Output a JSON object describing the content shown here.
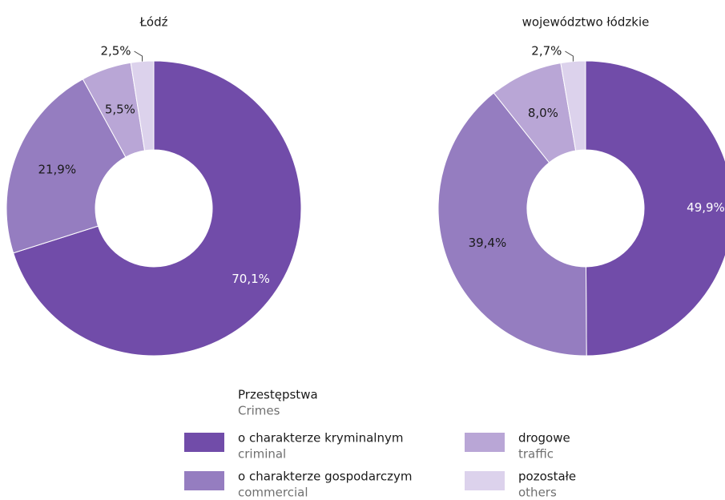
{
  "chart_data": [
    {
      "type": "donut",
      "title": "Łódź",
      "categories": [
        "o charakterze kryminalnym",
        "o charakterze gospodarczym",
        "drogowe",
        "pozostałe"
      ],
      "values": [
        70.1,
        21.9,
        5.5,
        2.5
      ],
      "value_labels": [
        "70,1%",
        "21,9%",
        "5,5%",
        "2,5%"
      ],
      "colors": [
        "#714ca9",
        "#957dc0",
        "#b9a6d6",
        "#dcd2ec"
      ]
    },
    {
      "type": "donut",
      "title": "województwo łódzkie",
      "categories": [
        "o charakterze kryminalnym",
        "o charakterze gospodarczym",
        "drogowe",
        "pozostałe"
      ],
      "values": [
        49.9,
        39.4,
        8.0,
        2.7
      ],
      "value_labels": [
        "49,9%",
        "39,4%",
        "8,0%",
        "2,7%"
      ],
      "colors": [
        "#714ca9",
        "#957dc0",
        "#b9a6d6",
        "#dcd2ec"
      ]
    }
  ],
  "legend": {
    "title": "Przestępstwa",
    "subtitle": "Crimes",
    "labels_en": [
      "criminal",
      "commercial",
      "traffic",
      "others"
    ]
  }
}
